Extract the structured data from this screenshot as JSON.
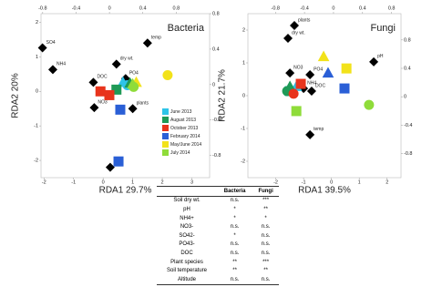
{
  "chart_data": [
    {
      "type": "scatter",
      "title": "Bacteria",
      "x_label": "RDA1 29.7%",
      "y_label": "RDA2 20%",
      "xlim": [
        -2.1,
        3.6
      ],
      "ylim": [
        -2.5,
        2.25
      ],
      "xticks": [
        -2,
        -1,
        0,
        1,
        2,
        3
      ],
      "yticks": [
        -2,
        -1,
        0,
        1,
        2
      ],
      "x2lim": [
        -0.82,
        1.2
      ],
      "x2ticks": [
        -0.8,
        -0.4,
        0,
        0.4,
        0.8
      ],
      "y2lim": [
        -1.05,
        0.8
      ],
      "y2ticks": [
        -0.8,
        -0.4,
        0,
        0.4,
        0.8
      ],
      "legend": "lower right",
      "series": [
        {
          "name": "June 2013",
          "color": "#2ec4e8",
          "markers": [
            "circle",
            "triangle"
          ],
          "x": [
            0.82,
            0.67
          ],
          "values": [
            0.18,
            0.26
          ]
        },
        {
          "name": "August 2013",
          "color": "#1f9a57",
          "markers": [
            "square",
            "triangle"
          ],
          "x": [
            0.45,
            0.91
          ],
          "values": [
            0.05,
            0.24
          ]
        },
        {
          "name": "October 2013",
          "color": "#e8341c",
          "markers": [
            "square",
            "square"
          ],
          "x": [
            0.21,
            -0.09
          ],
          "values": [
            -0.11,
            0
          ]
        },
        {
          "name": "February 2014",
          "color": "#2a5fd6",
          "markers": [
            "square",
            "square"
          ],
          "x": [
            0.58,
            0.52
          ],
          "values": [
            -0.53,
            -2.03
          ]
        },
        {
          "name": "May/June 2014",
          "color": "#f2e21a",
          "markers": [
            "circle",
            "triangle"
          ],
          "x": [
            2.18,
            1.12
          ],
          "values": [
            0.47,
            0.26
          ]
        },
        {
          "name": "July 2014",
          "color": "#8fdc3a",
          "markers": [
            "circle",
            "triangle"
          ],
          "x": [
            1.03,
            1.0
          ],
          "values": [
            0.13,
            0.21
          ]
        }
      ],
      "biplot": {
        "labels": [
          "SO4",
          "temp",
          "NH4",
          "dry wt.",
          "DOC",
          "PO4",
          "NO3",
          "plants",
          "pH"
        ],
        "x": [
          -2.05,
          1.5,
          -1.7,
          0.45,
          -0.33,
          0.76,
          -0.3,
          1.0,
          0.24
        ],
        "values": [
          1.26,
          1.4,
          0.63,
          0.79,
          0.26,
          0.37,
          -0.47,
          -0.5,
          -2.2
        ]
      }
    },
    {
      "type": "scatter",
      "title": "Fungi",
      "x_label": "RDA1 39.5%",
      "y_label": "RDA2 21.7%",
      "xlim": [
        -3,
        2.5
      ],
      "ylim": [
        -2.5,
        2.5
      ],
      "xticks": [
        -2,
        -1,
        0,
        1,
        2
      ],
      "yticks": [
        -2,
        -1,
        0,
        1,
        2
      ],
      "x2lim": [
        -1.18,
        0.93
      ],
      "x2ticks": [
        -0.8,
        -0.4,
        0,
        0.4,
        0.8
      ],
      "y2lim": [
        -1.14,
        1.17
      ],
      "y2ticks": [
        -0.8,
        -0.4,
        0,
        0.4,
        0.8
      ],
      "series": [
        {
          "name": "June 2013",
          "color": "#2ec4e8",
          "markers": [
            "square",
            "triangle"
          ],
          "x": [
            -1.49,
            -1.26
          ],
          "values": [
            0.14,
            0.28
          ]
        },
        {
          "name": "August 2013",
          "color": "#1f9a57",
          "markers": [
            "triangle",
            "circle"
          ],
          "x": [
            -1.49,
            -1.59
          ],
          "values": [
            0.28,
            0.14
          ]
        },
        {
          "name": "October 2013",
          "color": "#e8341c",
          "markers": [
            "circle",
            "square"
          ],
          "x": [
            -1.36,
            -1.1
          ],
          "values": [
            0.06,
            0.36
          ]
        },
        {
          "name": "February 2014",
          "color": "#2a5fd6",
          "markers": [
            "triangle",
            "square"
          ],
          "x": [
            -0.12,
            0.47
          ],
          "values": [
            0.69,
            0.22
          ]
        },
        {
          "name": "May/June 2014",
          "color": "#f2e21a",
          "markers": [
            "square",
            "triangle"
          ],
          "x": [
            0.54,
            -0.28
          ],
          "values": [
            0.83,
            1.19
          ]
        },
        {
          "name": "July 2014",
          "color": "#8fdc3a",
          "markers": [
            "circle",
            "square"
          ],
          "x": [
            1.35,
            -1.26
          ],
          "values": [
            -0.28,
            -0.47
          ]
        }
      ],
      "biplot": {
        "labels": [
          "plants",
          "dry wt.",
          "pH",
          "NO3",
          "PO4",
          "NH4",
          "DOC",
          "temp"
        ],
        "x": [
          -1.33,
          -1.56,
          1.52,
          -1.49,
          -0.77,
          -1.0,
          -0.71,
          -0.77
        ],
        "values": [
          2.14,
          1.75,
          1.03,
          0.69,
          0.64,
          0.22,
          0.14,
          -1.19
        ]
      }
    }
  ],
  "table": {
    "header": [
      "Bacteria",
      "Fungi"
    ],
    "rows": [
      [
        "Soil dry wt.",
        "n.s.",
        "***"
      ],
      [
        "pH",
        "*",
        "**"
      ],
      [
        "NH4+",
        "*",
        "*"
      ],
      [
        "NO3-",
        "n.s.",
        "n.s."
      ],
      [
        "SO42-",
        "*",
        "n.s."
      ],
      [
        "PO43-",
        "n.s.",
        "n.s."
      ],
      [
        "DOC",
        "n.s.",
        "n.s."
      ],
      [
        "Plant species",
        "**",
        "***"
      ],
      [
        "Soil temperature",
        "**",
        "**"
      ],
      [
        "Altitude",
        "n.s.",
        "n.s."
      ]
    ]
  }
}
